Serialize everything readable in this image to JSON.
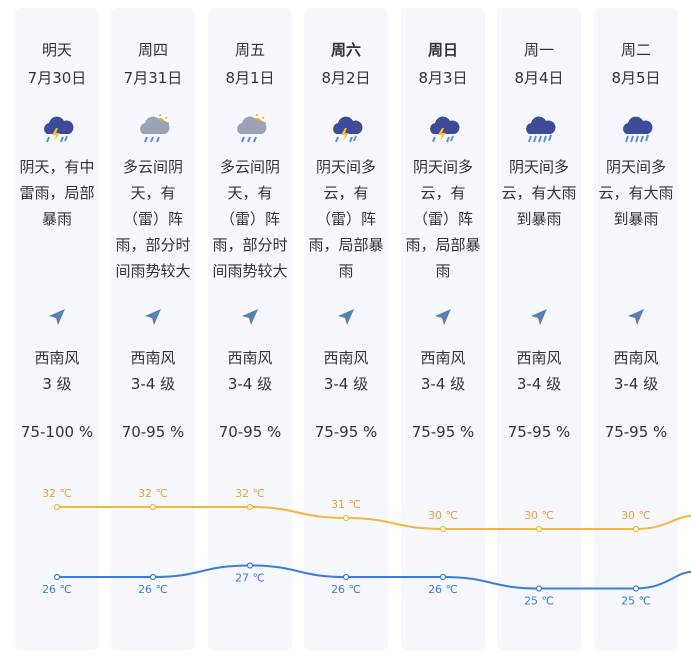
{
  "days": [
    {
      "day": "明天",
      "date": "7月30日",
      "weather": "阴天，有中雷雨，局部暴雨",
      "icon": "thunderstorm-icon",
      "wind_dir": "西南风",
      "wind_level": "3 级",
      "humidity": "75-100 %",
      "bold": false
    },
    {
      "day": "周四",
      "date": "7月31日",
      "weather": "多云间阴天，有（雷）阵雨，部分时间雨势较大",
      "icon": "partly-cloudy-rain-icon",
      "wind_dir": "西南风",
      "wind_level": "3-4 级",
      "humidity": "70-95 %",
      "bold": false
    },
    {
      "day": "周五",
      "date": "8月1日",
      "weather": "多云间阴天，有（雷）阵雨，部分时间雨势较大",
      "icon": "partly-cloudy-rain-icon",
      "wind_dir": "西南风",
      "wind_level": "3-4 级",
      "humidity": "70-95 %",
      "bold": false
    },
    {
      "day": "周六",
      "date": "8月2日",
      "weather": "阴天间多云，有（雷）阵雨，局部暴雨",
      "icon": "thunderstorm-icon",
      "wind_dir": "西南风",
      "wind_level": "3-4 级",
      "humidity": "75-95 %",
      "bold": true
    },
    {
      "day": "周日",
      "date": "8月3日",
      "weather": "阴天间多云，有（雷）阵雨，局部暴雨",
      "icon": "thunderstorm-icon",
      "wind_dir": "西南风",
      "wind_level": "3-4 级",
      "humidity": "75-95 %",
      "bold": true
    },
    {
      "day": "周一",
      "date": "8月4日",
      "weather": "阴天间多云，有大雨到暴雨",
      "icon": "heavy-rain-icon",
      "wind_dir": "西南风",
      "wind_level": "3-4 级",
      "humidity": "75-95 %",
      "bold": false
    },
    {
      "day": "周二",
      "date": "8月5日",
      "weather": "阴天间多云，有大雨到暴雨",
      "icon": "heavy-rain-icon",
      "wind_dir": "西南风",
      "wind_level": "3-4 级",
      "humidity": "75-95 %",
      "bold": false
    }
  ],
  "wind_icon": "wind-direction-arrow-icon",
  "chart_data": {
    "type": "line",
    "x": [
      "7月30日",
      "7月31日",
      "8月1日",
      "8月2日",
      "8月3日",
      "8月4日",
      "8月5日"
    ],
    "series": [
      {
        "values": [
          32,
          32,
          32,
          31,
          30,
          30,
          30
        ],
        "labels": [
          "32 ℃",
          "32 ℃",
          "32 ℃",
          "31 ℃",
          "30 ℃",
          "30 ℃",
          "30 ℃"
        ]
      },
      {
        "values": [
          26,
          26,
          27,
          26,
          26,
          25,
          25
        ],
        "labels": [
          "26 ℃",
          "26 ℃",
          "27 ℃",
          "26 ℃",
          "26 ℃",
          "25 ℃",
          "25 ℃"
        ]
      }
    ],
    "colors": {
      "high": "#f4b63f",
      "low": "#3d7be0"
    }
  }
}
